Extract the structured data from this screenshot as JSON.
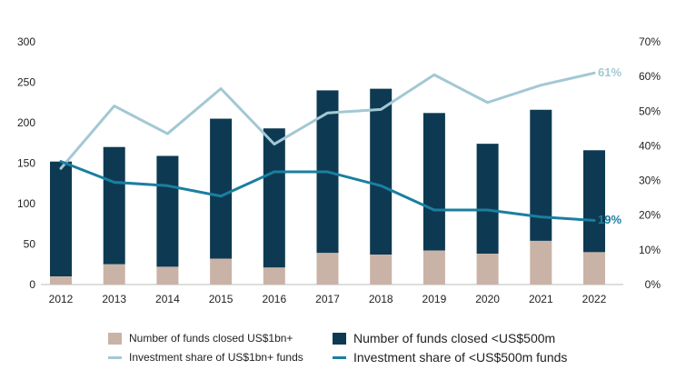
{
  "chart_data": {
    "type": "bar",
    "categories": [
      "2012",
      "2013",
      "2014",
      "2015",
      "2016",
      "2017",
      "2018",
      "2019",
      "2020",
      "2021",
      "2022"
    ],
    "left_axis": {
      "min": 0,
      "max": 300,
      "ticks": [
        "0",
        "50",
        "100",
        "150",
        "200",
        "250",
        "300"
      ]
    },
    "right_axis": {
      "min": 0,
      "max": 70,
      "ticks": [
        "0%",
        "10%",
        "20%",
        "30%",
        "40%",
        "50%",
        "60%",
        "70%"
      ]
    },
    "series": [
      {
        "name": "Number of funds closed US$1bn+",
        "kind": "bar",
        "axis": "left",
        "color": "#c9b3a6",
        "values": [
          10,
          25,
          22,
          32,
          21,
          39,
          37,
          42,
          38,
          54,
          40
        ]
      },
      {
        "name": "Number of funds closed <US$500m",
        "kind": "bar",
        "axis": "left",
        "color": "#0d3a52",
        "values": [
          152,
          170,
          159,
          205,
          193,
          240,
          242,
          212,
          174,
          216,
          166
        ]
      },
      {
        "name": "Investment share of US$1bn+ funds",
        "kind": "line",
        "axis": "right",
        "color": "#a3c8d4",
        "values": [
          33.5,
          51.5,
          43.5,
          56.5,
          40.5,
          49.5,
          50.5,
          60.5,
          52.5,
          57.5,
          61
        ]
      },
      {
        "name": "Investment share of <US$500m funds",
        "kind": "line",
        "axis": "right",
        "color": "#1a7fa0",
        "values": [
          35.5,
          29.5,
          28.5,
          25.5,
          32.5,
          32.5,
          28.5,
          21.5,
          21.5,
          19.5,
          18.5
        ]
      }
    ],
    "end_labels": {
      "line1": "61%",
      "line2": "19%"
    },
    "legend_position": "bottom",
    "grid": false
  }
}
